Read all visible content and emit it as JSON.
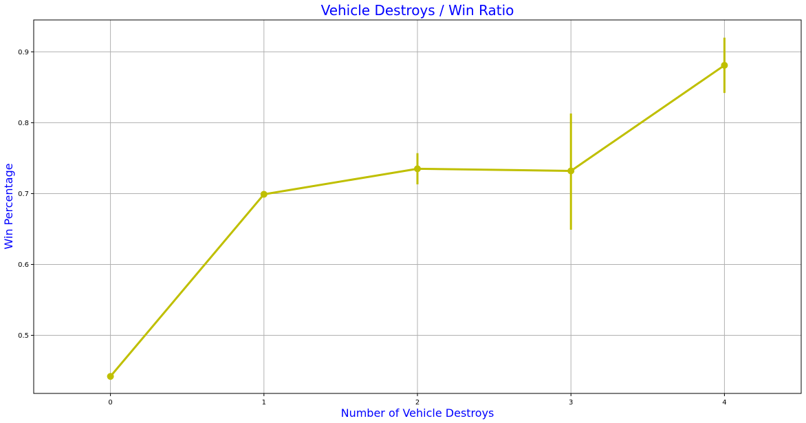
{
  "chart_data": {
    "type": "line",
    "title": "Vehicle Destroys / Win Ratio",
    "xlabel": "Number of Vehicle Destroys",
    "ylabel": "Win Percentage",
    "x": [
      0,
      1,
      2,
      3,
      4
    ],
    "x_tick_labels": [
      "0",
      "1",
      "2",
      "3",
      "4"
    ],
    "xlim": [
      -0.5,
      4.5
    ],
    "ylim": [
      0.418,
      0.945
    ],
    "y_ticks": [
      0.5,
      0.6,
      0.7,
      0.8,
      0.9
    ],
    "y_tick_labels": [
      "0.5",
      "0.6",
      "0.7",
      "0.8",
      "0.9"
    ],
    "grid": true,
    "series": [
      {
        "values": [
          0.442,
          0.699,
          0.735,
          0.732,
          0.881
        ],
        "error_low": [
          0.442,
          0.698,
          0.713,
          0.649,
          0.842
        ],
        "error_high": [
          0.442,
          0.7,
          0.757,
          0.813,
          0.92
        ]
      }
    ],
    "colors": {
      "series": "#bfbf00",
      "title": "#0000ff",
      "axis_labels": "#0000ff",
      "grid": "#b0b0b0",
      "frame": "#000000"
    }
  }
}
